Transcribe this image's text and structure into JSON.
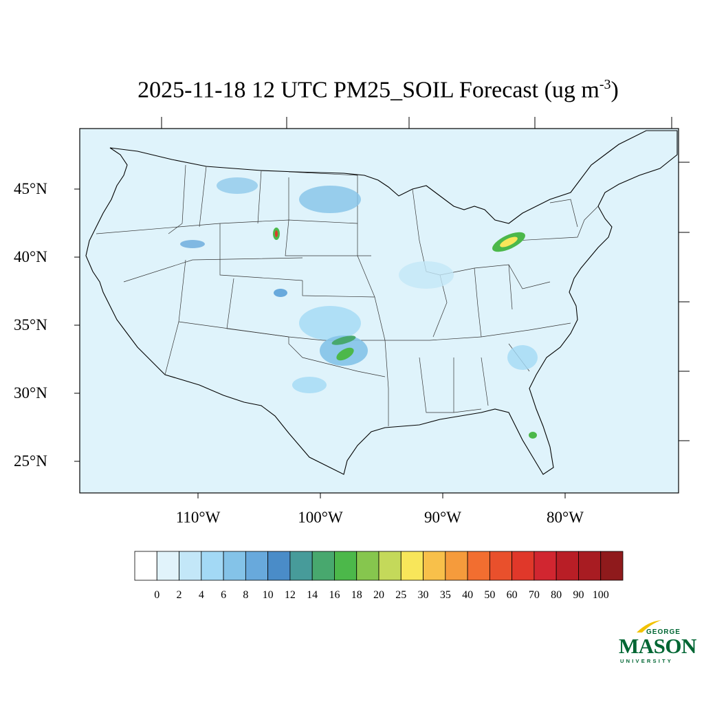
{
  "title": {
    "main": "2025-11-18 12 UTC PM25_SOIL Forecast (ug m",
    "sup": "-3",
    "close": ")"
  },
  "axes": {
    "lat_labels": [
      "45°N",
      "40°N",
      "35°N",
      "30°N",
      "25°N"
    ],
    "lon_labels": [
      "110°W",
      "100°W",
      "90°W",
      "80°W"
    ]
  },
  "colorbar": {
    "labels": [
      "0",
      "2",
      "4",
      "6",
      "8",
      "10",
      "12",
      "14",
      "16",
      "18",
      "20",
      "25",
      "30",
      "35",
      "40",
      "50",
      "60",
      "70",
      "80",
      "90",
      "100"
    ],
    "colors": [
      "#ffffff",
      "#e1f3fb",
      "#c3e7f8",
      "#a3d9f5",
      "#84c3e8",
      "#68a9dc",
      "#4a8cc8",
      "#479b9a",
      "#48a86e",
      "#4cb84a",
      "#86c64e",
      "#c4d95a",
      "#f8e65a",
      "#f8c04a",
      "#f59b3c",
      "#f26e30",
      "#e9502c",
      "#e0382a",
      "#d12630",
      "#b91e26",
      "#a81c22",
      "#8f1a1c"
    ]
  },
  "map": {
    "ocean_color": "#dff3fb",
    "land_base_color": "#dff3fb"
  },
  "logo": {
    "top": "GEORGE",
    "main": "MASON",
    "bottom": "UNIVERSITY"
  }
}
